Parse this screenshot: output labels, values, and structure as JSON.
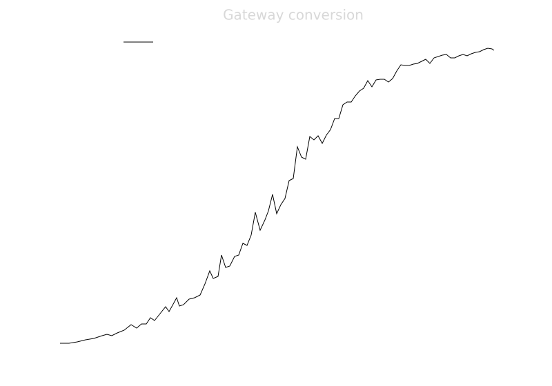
{
  "chart_data": {
    "type": "line",
    "title": "Gateway conversion",
    "color": "#000000",
    "x": [
      87,
      100,
      112,
      124,
      136,
      148,
      155,
      162,
      170,
      180,
      190,
      198,
      205,
      212,
      218,
      224,
      232,
      240,
      245,
      250,
      256,
      260,
      266,
      274,
      282,
      290,
      297,
      304,
      309,
      316,
      321,
      327,
      333,
      340,
      346,
      352,
      358,
      364,
      370,
      377,
      384,
      389,
      395,
      401,
      407,
      413,
      419,
      425,
      431,
      437,
      443,
      449,
      455,
      461,
      467,
      473,
      479,
      485,
      491,
      497,
      503,
      509,
      515,
      521,
      527,
      533,
      539,
      545,
      551,
      557,
      563,
      569,
      575,
      581,
      587,
      593,
      599,
      605,
      611,
      617,
      623,
      629,
      635,
      641,
      647,
      653,
      659,
      665,
      671,
      677,
      683,
      689,
      695,
      701,
      707,
      713,
      716
    ],
    "values": [
      12,
      12,
      14,
      17,
      19,
      23,
      25,
      23,
      27,
      31,
      39,
      34,
      40,
      40,
      49,
      45,
      55,
      65,
      58,
      67,
      78,
      66,
      68,
      76,
      78,
      82,
      98,
      117,
      106,
      109,
      140,
      122,
      124,
      138,
      140,
      157,
      154,
      169,
      202,
      176,
      191,
      204,
      228,
      200,
      213,
      222,
      248,
      251,
      297,
      282,
      279,
      312,
      307,
      313,
      302,
      314,
      322,
      338,
      338,
      358,
      362,
      362,
      371,
      378,
      382,
      393,
      384,
      394,
      395,
      395,
      391,
      396,
      407,
      416,
      415,
      415,
      417,
      418,
      421,
      424,
      418,
      426,
      428,
      430,
      431,
      426,
      426,
      429,
      431,
      429,
      432,
      434,
      435,
      438,
      440,
      439,
      437
    ],
    "xlim": [
      87,
      716
    ],
    "ylim": [
      0,
      450
    ]
  }
}
